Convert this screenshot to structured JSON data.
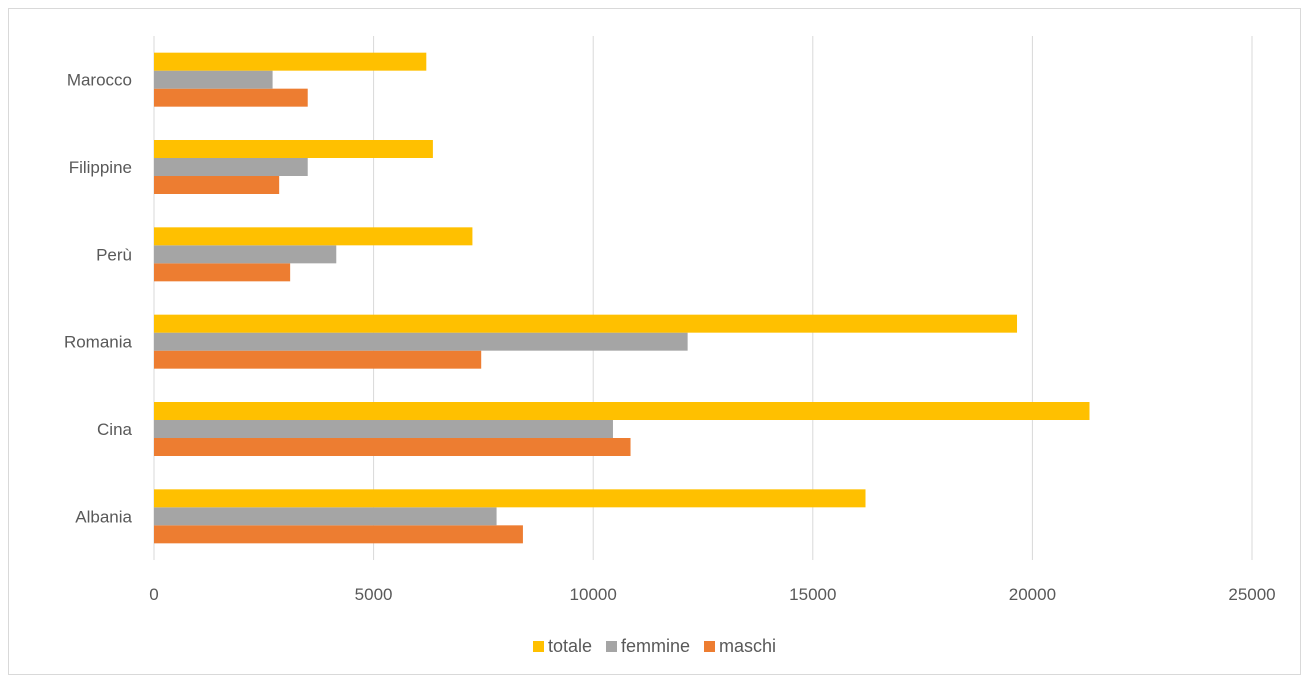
{
  "chart_data": {
    "type": "bar",
    "orientation": "horizontal",
    "title": "",
    "xlabel": "",
    "ylabel": "",
    "categories": [
      "Albania",
      "Cina",
      "Romania",
      "Perù",
      "Filippine",
      "Marocco"
    ],
    "series": [
      {
        "name": "maschi",
        "color": "#ED7D31",
        "values": [
          8400,
          10850,
          7450,
          3100,
          2850,
          3500
        ]
      },
      {
        "name": "femmine",
        "color": "#A5A5A5",
        "values": [
          7800,
          10450,
          12150,
          4150,
          3500,
          2700
        ]
      },
      {
        "name": "totale",
        "color": "#FFC000",
        "values": [
          16200,
          21300,
          19650,
          7250,
          6350,
          6200
        ]
      }
    ],
    "xlim": [
      0,
      25000
    ],
    "xticks": [
      "0",
      "5000",
      "10000",
      "15000",
      "20000",
      "25000"
    ],
    "grid": true,
    "legend_position": "bottom"
  },
  "legend": {
    "totale": "totale",
    "femmine": "femmine",
    "maschi": "maschi"
  }
}
